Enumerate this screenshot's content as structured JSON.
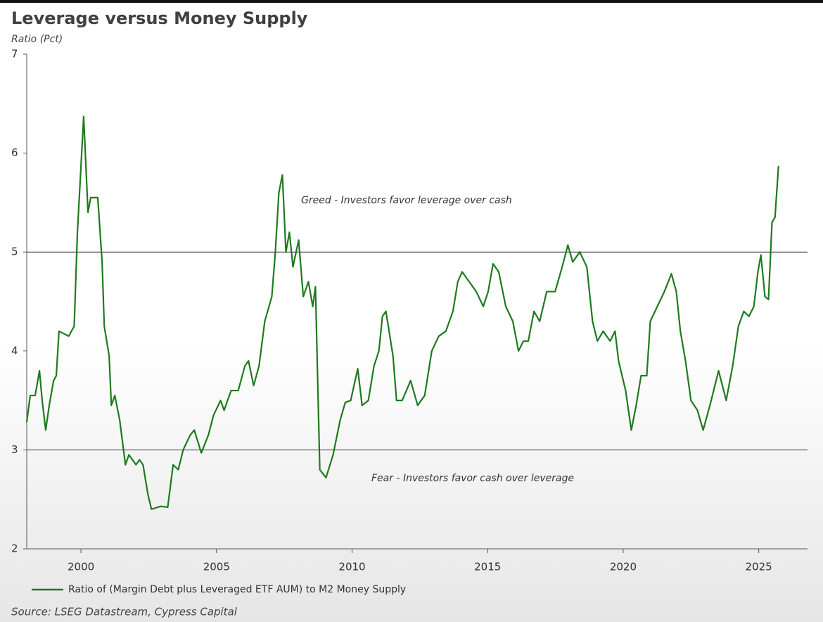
{
  "chart_data": {
    "type": "line",
    "title": "Leverage versus Money Supply",
    "subtitle": "Ratio (Pct)",
    "source": "Source: LSEG Datastream, Cypress Capital",
    "annotations": [
      "Greed - Investors favor leverage over cash",
      "Fear - Investors favor cash over leverage"
    ],
    "hlines": [
      5,
      3
    ],
    "xlim": [
      1998,
      2026.8
    ],
    "xticks": [
      2000,
      2005,
      2010,
      2015,
      2020,
      2025
    ],
    "ylim": [
      2,
      7
    ],
    "yticks": [
      2,
      3,
      4,
      5,
      6,
      7
    ],
    "grid": false,
    "legend": "bottom",
    "x": [
      1998.0,
      1998.13,
      1998.31,
      1998.47,
      1998.57,
      1998.7,
      1998.83,
      1998.99,
      1999.09,
      1999.19,
      1999.55,
      1999.75,
      1999.87,
      2000.1,
      2000.26,
      2000.36,
      2000.62,
      2000.78,
      2000.86,
      2001.04,
      2001.12,
      2001.25,
      2001.43,
      2001.64,
      2001.77,
      2002.03,
      2002.16,
      2002.29,
      2002.47,
      2002.6,
      2002.94,
      2003.2,
      2003.4,
      2003.59,
      2003.77,
      2004.03,
      2004.18,
      2004.44,
      2004.7,
      2004.89,
      2005.15,
      2005.28,
      2005.54,
      2005.8,
      2006.05,
      2006.18,
      2006.37,
      2006.57,
      2006.78,
      2007.04,
      2007.17,
      2007.3,
      2007.43,
      2007.56,
      2007.69,
      2007.82,
      2008.03,
      2008.2,
      2008.39,
      2008.55,
      2008.65,
      2008.81,
      2009.04,
      2009.3,
      2009.56,
      2009.75,
      2009.95,
      2010.21,
      2010.37,
      2010.6,
      2010.81,
      2010.99,
      2011.12,
      2011.25,
      2011.51,
      2011.64,
      2011.85,
      2012.16,
      2012.42,
      2012.68,
      2012.94,
      2013.2,
      2013.46,
      2013.72,
      2013.9,
      2014.06,
      2014.32,
      2014.58,
      2014.84,
      2015.02,
      2015.2,
      2015.41,
      2015.67,
      2015.93,
      2016.14,
      2016.32,
      2016.5,
      2016.71,
      2016.92,
      2017.18,
      2017.49,
      2017.75,
      2017.96,
      2018.14,
      2018.4,
      2018.66,
      2018.87,
      2019.05,
      2019.26,
      2019.52,
      2019.7,
      2019.83,
      2020.09,
      2020.3,
      2020.48,
      2020.66,
      2020.87,
      2021.0,
      2021.26,
      2021.52,
      2021.78,
      2021.96,
      2022.11,
      2022.3,
      2022.5,
      2022.74,
      2022.95,
      2023.2,
      2023.52,
      2023.8,
      2024.04,
      2024.25,
      2024.45,
      2024.64,
      2024.82,
      2024.97,
      2025.08,
      2025.23,
      2025.36,
      2025.49,
      2025.6,
      2025.73
    ],
    "series": [
      {
        "name": "Ratio of (Margin Debt plus Leveraged ETF AUM) to M2 Money Supply",
        "color": "#1e7a1e",
        "values": [
          3.28,
          3.55,
          3.55,
          3.8,
          3.5,
          3.2,
          3.45,
          3.7,
          3.75,
          4.2,
          4.15,
          4.25,
          5.2,
          6.37,
          5.4,
          5.55,
          5.55,
          4.9,
          4.25,
          3.95,
          3.45,
          3.55,
          3.3,
          2.85,
          2.95,
          2.85,
          2.9,
          2.85,
          2.55,
          2.4,
          2.43,
          2.42,
          2.85,
          2.8,
          3.0,
          3.15,
          3.2,
          2.97,
          3.15,
          3.35,
          3.5,
          3.4,
          3.6,
          3.6,
          3.85,
          3.9,
          3.65,
          3.85,
          4.3,
          4.55,
          5.0,
          5.6,
          5.78,
          5.0,
          5.2,
          4.85,
          5.12,
          4.55,
          4.7,
          4.45,
          4.65,
          2.8,
          2.72,
          2.95,
          3.3,
          3.48,
          3.5,
          3.82,
          3.45,
          3.5,
          3.85,
          4.0,
          4.35,
          4.4,
          3.95,
          3.5,
          3.5,
          3.7,
          3.45,
          3.55,
          4.0,
          4.15,
          4.2,
          4.4,
          4.7,
          4.8,
          4.7,
          4.6,
          4.45,
          4.6,
          4.88,
          4.8,
          4.45,
          4.3,
          4.0,
          4.1,
          4.1,
          4.4,
          4.3,
          4.6,
          4.6,
          4.85,
          5.07,
          4.9,
          5.0,
          4.85,
          4.3,
          4.1,
          4.2,
          4.1,
          4.2,
          3.9,
          3.6,
          3.2,
          3.45,
          3.75,
          3.75,
          4.3,
          4.45,
          4.6,
          4.78,
          4.6,
          4.2,
          3.9,
          3.5,
          3.4,
          3.2,
          3.45,
          3.8,
          3.5,
          3.85,
          4.25,
          4.4,
          4.35,
          4.45,
          4.8,
          4.97,
          4.55,
          4.52,
          5.3,
          5.35,
          5.87
        ]
      }
    ]
  }
}
